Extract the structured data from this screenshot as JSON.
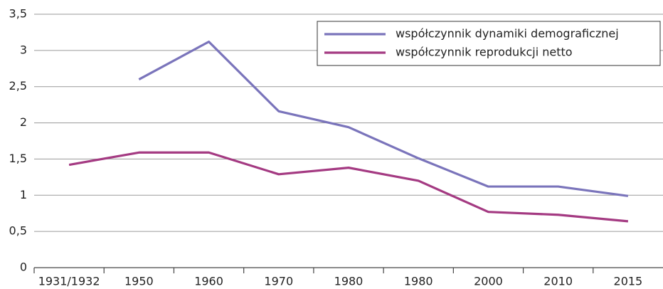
{
  "chart_data": {
    "type": "line",
    "categories": [
      "1931/1932",
      "1950",
      "1960",
      "1970",
      "1980",
      "1980",
      "2000",
      "2010",
      "2015"
    ],
    "series": [
      {
        "name": "współczynnik dynamiki demograficznej",
        "color": "#7a74bb",
        "values": [
          null,
          2.6,
          3.12,
          2.16,
          1.94,
          1.51,
          1.12,
          1.12,
          0.99
        ]
      },
      {
        "name": "współczynnik reprodukcji netto",
        "color": "#a43a82",
        "values": [
          1.42,
          1.59,
          1.59,
          1.29,
          1.38,
          1.2,
          0.77,
          0.73,
          0.64
        ]
      }
    ],
    "ylim": [
      0,
      3.5
    ],
    "yticks": [
      0,
      {
        "value": 0.5,
        "label": "0,5"
      },
      1,
      {
        "value": 1.5,
        "label": "1,5"
      },
      2,
      {
        "value": 2.5,
        "label": "2,5"
      },
      3,
      {
        "value": 3.5,
        "label": "3,5"
      }
    ],
    "grid": true,
    "legend": "top-right"
  }
}
